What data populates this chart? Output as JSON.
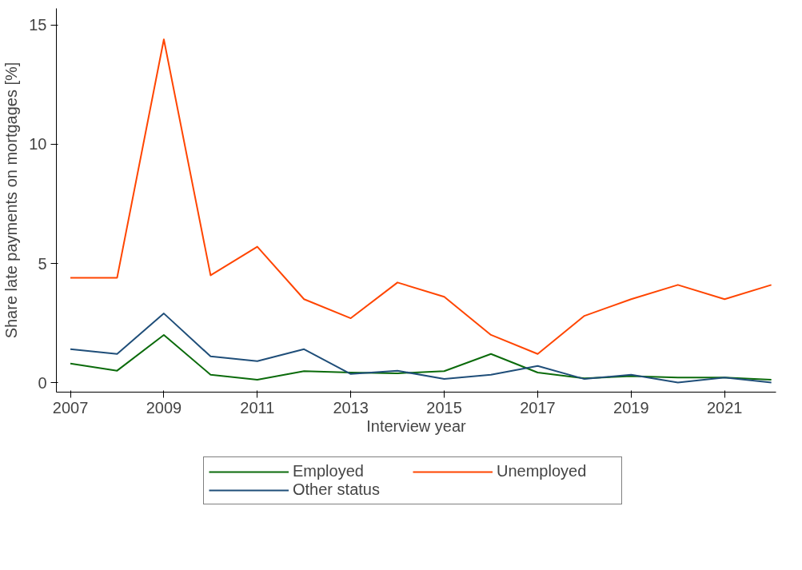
{
  "chart_data": {
    "type": "line",
    "xlabel": "Interview year",
    "ylabel": "Share late payments on mortgages [%]",
    "x": [
      2007,
      2008,
      2009,
      2010,
      2011,
      2012,
      2013,
      2014,
      2015,
      2016,
      2017,
      2018,
      2019,
      2020,
      2021,
      2022
    ],
    "series": [
      {
        "name": "Employed",
        "color": "#0b6b0b",
        "values": [
          0.8,
          0.5,
          2.0,
          0.33,
          0.12,
          0.48,
          0.42,
          0.39,
          0.48,
          1.2,
          0.42,
          0.18,
          0.27,
          0.21,
          0.21,
          0.12
        ]
      },
      {
        "name": "Unemployed",
        "color": "#ff4500",
        "values": [
          4.4,
          4.4,
          14.4,
          4.5,
          5.7,
          3.5,
          2.7,
          4.2,
          3.6,
          2.0,
          1.2,
          2.8,
          3.5,
          4.1,
          3.5,
          4.1
        ]
      },
      {
        "name": "Other status",
        "color": "#1f4e79",
        "values": [
          1.4,
          1.2,
          2.9,
          1.1,
          0.9,
          1.4,
          0.36,
          0.5,
          0.15,
          0.33,
          0.7,
          0.15,
          0.33,
          0.0,
          0.21,
          0.0
        ]
      }
    ],
    "xlim": [
      2006.7,
      2022.1
    ],
    "ylim": [
      -0.4,
      15.7
    ],
    "xticks": [
      2007,
      2009,
      2011,
      2013,
      2015,
      2017,
      2019,
      2021
    ],
    "yticks": [
      0,
      5,
      10,
      15
    ],
    "grid": false,
    "legend": "bottom",
    "marker": "none",
    "line_style": "solid"
  }
}
